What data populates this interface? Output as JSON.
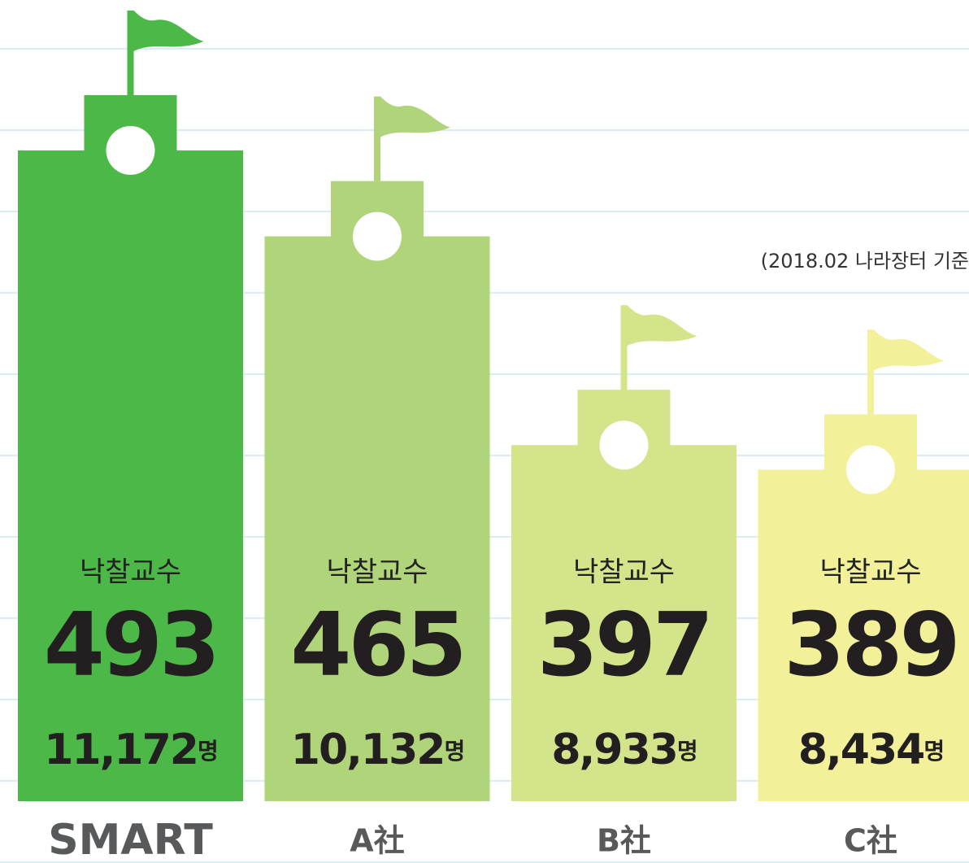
{
  "chart_data": {
    "type": "bar",
    "note": "(2018.02 나라장터 기준",
    "categories": [
      "SMART",
      "A社",
      "B社",
      "C社"
    ],
    "series": [
      {
        "name": "낙찰교수",
        "colors": [
          "#4cb848",
          "#b0d47a",
          "#d4e48a",
          "#f2f19a"
        ],
        "values": [
          493,
          465,
          397,
          389
        ]
      },
      {
        "unit": "명",
        "values": [
          11172,
          10132,
          8933,
          8434
        ],
        "value_labels": [
          "11,172",
          "10,132",
          "8,933",
          "8,434"
        ]
      }
    ],
    "ylim": [
      281,
      542
    ]
  }
}
